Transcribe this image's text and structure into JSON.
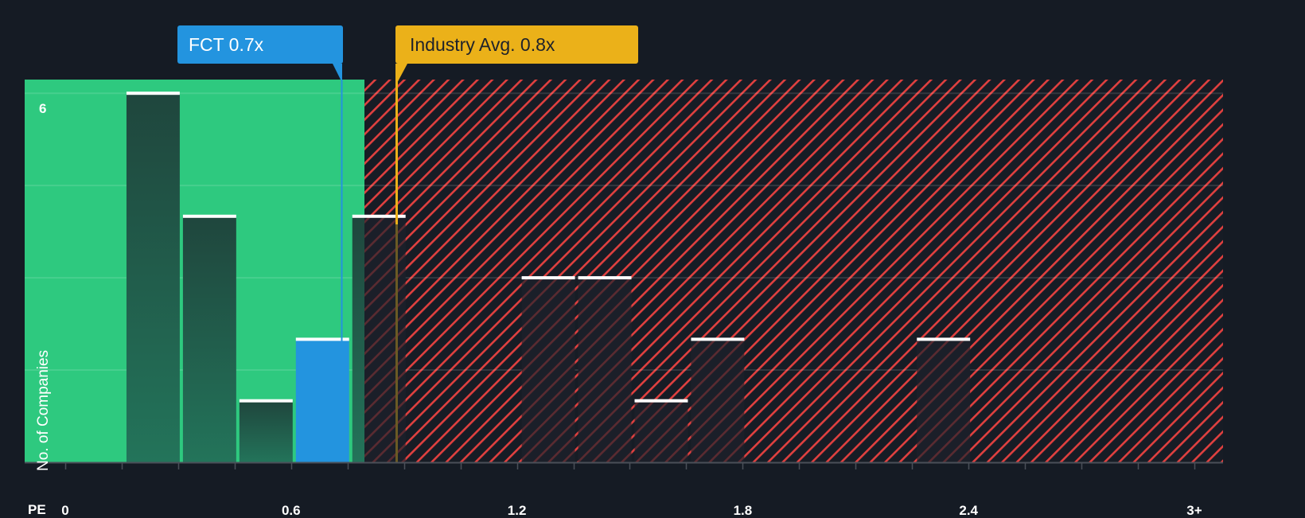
{
  "chart_data": {
    "type": "bar",
    "title": "",
    "xlabel": "PE",
    "ylabel": "No. of Companies",
    "x_tick_labels": [
      "0",
      "0.6",
      "1.2",
      "1.8",
      "2.4",
      "3+"
    ],
    "y_tick_labels": [
      "6"
    ],
    "xlim": [
      -0.1,
      3.08
    ],
    "ylim": [
      0,
      6.2
    ],
    "bin_width": 0.15,
    "bins": [
      {
        "start": 0.15,
        "end": 0.3,
        "count": 6,
        "highlight": false
      },
      {
        "start": 0.3,
        "end": 0.45,
        "count": 4,
        "highlight": false
      },
      {
        "start": 0.45,
        "end": 0.6,
        "count": 1,
        "highlight": false
      },
      {
        "start": 0.6,
        "end": 0.75,
        "count": 2,
        "highlight": true
      },
      {
        "start": 0.75,
        "end": 0.9,
        "count": 4,
        "highlight": false
      },
      {
        "start": 1.2,
        "end": 1.35,
        "count": 3,
        "highlight": false
      },
      {
        "start": 1.35,
        "end": 1.5,
        "count": 3,
        "highlight": false
      },
      {
        "start": 1.5,
        "end": 1.65,
        "count": 1,
        "highlight": false
      },
      {
        "start": 1.65,
        "end": 1.8,
        "count": 2,
        "highlight": false
      },
      {
        "start": 2.25,
        "end": 2.4,
        "count": 2,
        "highlight": false
      }
    ],
    "categories": [
      "0.15-0.30",
      "0.30-0.45",
      "0.45-0.60",
      "0.60-0.75",
      "0.75-0.90",
      "1.20-1.35",
      "1.35-1.50",
      "1.50-1.65",
      "1.65-1.80",
      "2.25-2.40"
    ],
    "values": [
      6,
      4,
      1,
      2,
      4,
      3,
      3,
      1,
      2,
      2
    ],
    "gridlines": [
      1.5,
      3,
      4.5,
      6
    ],
    "grid": true,
    "legend": "none",
    "markers": [
      {
        "name": "FCT",
        "value": 0.7,
        "label": "FCT 0.7x",
        "color": "#2394df"
      },
      {
        "name": "Industry Avg.",
        "value": 0.8,
        "label": "Industry Avg. 0.8x",
        "color": "#ebb119"
      }
    ],
    "regions": [
      {
        "name": "undervalued",
        "from": -0.1,
        "to": 0.8,
        "color": "#2ec97f"
      },
      {
        "name": "overvalued",
        "from": 0.8,
        "to": 3.08,
        "color": "#e0403f",
        "pattern": "diagonal-hatch"
      }
    ]
  },
  "labels": {
    "fct_callout": "FCT 0.7x",
    "industry_callout": "Industry Avg. 0.8x",
    "x_axis_name": "PE",
    "y_axis_name": "No. of Companies",
    "y_top_tick": "6"
  },
  "colors": {
    "background": "#151b24",
    "green_region": "#2ec97f",
    "hatch": "#e0403f",
    "bar_dark": "#1f4a3e",
    "bar_fct": "#2394df",
    "industry": "#ebb119"
  }
}
